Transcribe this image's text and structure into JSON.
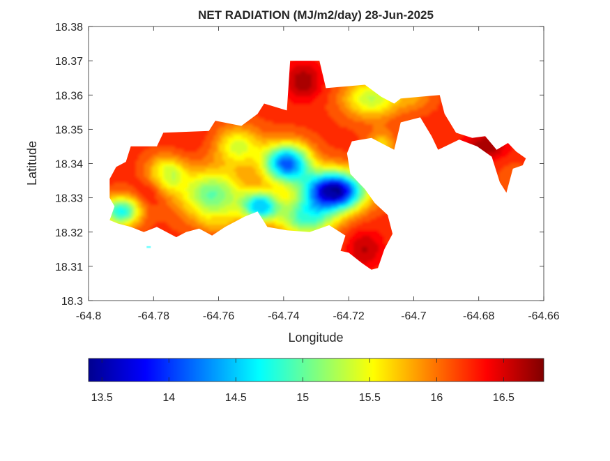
{
  "chart_data": {
    "type": "heatmap",
    "title": "NET RADIATION (MJ/m2/day) 28-Jun-2025",
    "xlabel": "Longitude",
    "ylabel": "Latitude",
    "xlim": [
      -64.8,
      -64.66
    ],
    "ylim": [
      18.3,
      18.38
    ],
    "x_ticks": [
      -64.8,
      -64.78,
      -64.76,
      -64.74,
      -64.72,
      -64.7,
      -64.68,
      -64.66
    ],
    "y_ticks": [
      18.3,
      18.31,
      18.32,
      18.33,
      18.34,
      18.35,
      18.36,
      18.37,
      18.38
    ],
    "x_tick_labels": [
      "-64.8",
      "-64.78",
      "-64.76",
      "-64.74",
      "-64.72",
      "-64.7",
      "-64.68",
      "-64.66"
    ],
    "y_tick_labels": [
      "18.3",
      "18.31",
      "18.32",
      "18.33",
      "18.34",
      "18.35",
      "18.36",
      "18.37",
      "18.38"
    ],
    "colormap": "jet",
    "colorbar": {
      "orientation": "horizontal",
      "placement": "bottom",
      "range": [
        13.4,
        16.8
      ],
      "ticks": [
        13.5,
        14,
        14.5,
        15,
        15.5,
        16,
        16.5
      ],
      "tick_labels": [
        "13.5",
        "14",
        "14.5",
        "15",
        "15.5",
        "16",
        "16.5"
      ]
    },
    "grid": false,
    "boundary": [
      [
        -64.7935,
        18.3355
      ],
      [
        -64.7915,
        18.339
      ],
      [
        -64.7885,
        18.3405
      ],
      [
        -64.787,
        18.345
      ],
      [
        -64.779,
        18.345
      ],
      [
        -64.777,
        18.349
      ],
      [
        -64.763,
        18.3495
      ],
      [
        -64.761,
        18.3525
      ],
      [
        -64.753,
        18.351
      ],
      [
        -64.748,
        18.3545
      ],
      [
        -64.746,
        18.3575
      ],
      [
        -64.739,
        18.3555
      ],
      [
        -64.738,
        18.37
      ],
      [
        -64.729,
        18.37
      ],
      [
        -64.727,
        18.362
      ],
      [
        -64.715,
        18.363
      ],
      [
        -64.71,
        18.3595
      ],
      [
        -64.706,
        18.3575
      ],
      [
        -64.704,
        18.359
      ],
      [
        -64.692,
        18.36
      ],
      [
        -64.6905,
        18.3545
      ],
      [
        -64.687,
        18.349
      ],
      [
        -64.682,
        18.3475
      ],
      [
        -64.678,
        18.348
      ],
      [
        -64.6745,
        18.344
      ],
      [
        -64.671,
        18.346
      ],
      [
        -64.6685,
        18.3435
      ],
      [
        -64.6655,
        18.3415
      ],
      [
        -64.6665,
        18.3395
      ],
      [
        -64.6695,
        18.3385
      ],
      [
        -64.6715,
        18.3315
      ],
      [
        -64.6735,
        18.3345
      ],
      [
        -64.676,
        18.342
      ],
      [
        -64.6805,
        18.345
      ],
      [
        -64.686,
        18.347
      ],
      [
        -64.6925,
        18.344
      ],
      [
        -64.6945,
        18.348
      ],
      [
        -64.698,
        18.3535
      ],
      [
        -64.704,
        18.352
      ],
      [
        -64.706,
        18.344
      ],
      [
        -64.709,
        18.3455
      ],
      [
        -64.713,
        18.3475
      ],
      [
        -64.719,
        18.3465
      ],
      [
        -64.7205,
        18.343
      ],
      [
        -64.7195,
        18.337
      ],
      [
        -64.715,
        18.3325
      ],
      [
        -64.712,
        18.3285
      ],
      [
        -64.708,
        18.325
      ],
      [
        -64.7065,
        18.3195
      ],
      [
        -64.709,
        18.315
      ],
      [
        -64.711,
        18.3095
      ],
      [
        -64.713,
        18.309
      ],
      [
        -64.716,
        18.311
      ],
      [
        -64.72,
        18.314
      ],
      [
        -64.7225,
        18.3145
      ],
      [
        -64.721,
        18.319
      ],
      [
        -64.726,
        18.322
      ],
      [
        -64.732,
        18.32
      ],
      [
        -64.739,
        18.3205
      ],
      [
        -64.745,
        18.3215
      ],
      [
        -64.748,
        18.326
      ],
      [
        -64.752,
        18.3245
      ],
      [
        -64.758,
        18.3215
      ],
      [
        -64.762,
        18.319
      ],
      [
        -64.766,
        18.321
      ],
      [
        -64.77,
        18.32
      ],
      [
        -64.773,
        18.3185
      ],
      [
        -64.779,
        18.3215
      ],
      [
        -64.783,
        18.32
      ],
      [
        -64.787,
        18.3215
      ],
      [
        -64.791,
        18.3225
      ],
      [
        -64.7935,
        18.3235
      ],
      [
        -64.792,
        18.3275
      ],
      [
        -64.7935,
        18.33
      ]
    ],
    "islet": [
      -64.7815,
      18.3155
    ],
    "field_centers": [
      {
        "lon": -64.7245,
        "lat": 18.332,
        "value": 13.4,
        "sx": 0.0065,
        "sy": 0.004
      },
      {
        "lon": -64.739,
        "lat": 18.34,
        "value": 14.1,
        "sx": 0.005,
        "sy": 0.004
      },
      {
        "lon": -64.747,
        "lat": 18.3275,
        "value": 14.5,
        "sx": 0.004,
        "sy": 0.003
      },
      {
        "lon": -64.733,
        "lat": 18.324,
        "value": 14.9,
        "sx": 0.006,
        "sy": 0.004
      },
      {
        "lon": -64.762,
        "lat": 18.331,
        "value": 15.0,
        "sx": 0.007,
        "sy": 0.005
      },
      {
        "lon": -64.776,
        "lat": 18.337,
        "value": 15.3,
        "sx": 0.004,
        "sy": 0.0035
      },
      {
        "lon": -64.79,
        "lat": 18.326,
        "value": 14.7,
        "sx": 0.004,
        "sy": 0.003
      },
      {
        "lon": -64.769,
        "lat": 18.348,
        "value": 16.3,
        "sx": 0.005,
        "sy": 0.0035
      },
      {
        "lon": -64.783,
        "lat": 18.342,
        "value": 16.2,
        "sx": 0.004,
        "sy": 0.003
      },
      {
        "lon": -64.781,
        "lat": 18.332,
        "value": 16.4,
        "sx": 0.003,
        "sy": 0.003
      },
      {
        "lon": -64.734,
        "lat": 18.364,
        "value": 16.7,
        "sx": 0.004,
        "sy": 0.004
      },
      {
        "lon": -64.713,
        "lat": 18.359,
        "value": 15.3,
        "sx": 0.006,
        "sy": 0.004
      },
      {
        "lon": -64.71,
        "lat": 18.345,
        "value": 15.6,
        "sx": 0.003,
        "sy": 0.003
      },
      {
        "lon": -64.715,
        "lat": 18.315,
        "value": 16.6,
        "sx": 0.004,
        "sy": 0.004
      },
      {
        "lon": -64.678,
        "lat": 18.345,
        "value": 16.7,
        "sx": 0.005,
        "sy": 0.003
      },
      {
        "lon": -64.67,
        "lat": 18.337,
        "value": 16.1,
        "sx": 0.003,
        "sy": 0.004
      },
      {
        "lon": -64.754,
        "lat": 18.345,
        "value": 15.4,
        "sx": 0.005,
        "sy": 0.004
      },
      {
        "lon": -64.76,
        "lat": 18.323,
        "value": 15.9,
        "sx": 0.004,
        "sy": 0.0025
      },
      {
        "lon": -64.7,
        "lat": 18.359,
        "value": 15.9,
        "sx": 0.004,
        "sy": 0.0025
      }
    ],
    "background_value": 16.2
  }
}
